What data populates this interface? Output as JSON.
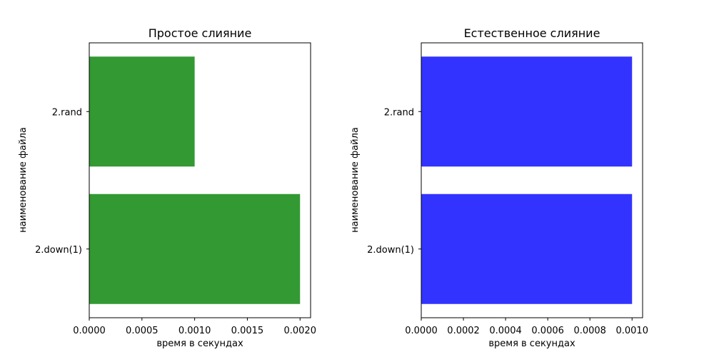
{
  "chart_data": [
    {
      "type": "bar",
      "orientation": "horizontal",
      "title": "Простое слияние",
      "xlabel": "время в секундах",
      "ylabel": "наименование файла",
      "categories": [
        "2.rand",
        "2.down(1)"
      ],
      "values": [
        0.001,
        0.002
      ],
      "xlim": [
        0,
        0.0021
      ],
      "xticks": [
        "0.0000",
        "0.0005",
        "0.0010",
        "0.0015",
        "0.0020"
      ],
      "bar_color": "#339933",
      "grid": false
    },
    {
      "type": "bar",
      "orientation": "horizontal",
      "title": "Естественное слияние",
      "xlabel": "время в секундах",
      "ylabel": "наименование файла",
      "categories": [
        "2.rand",
        "2.down(1)"
      ],
      "values": [
        0.001,
        0.001
      ],
      "xlim": [
        0,
        0.00105
      ],
      "xticks": [
        "0.0000",
        "0.0002",
        "0.0004",
        "0.0006",
        "0.0008",
        "0.0010"
      ],
      "bar_color": "#3333ff",
      "grid": false
    }
  ]
}
